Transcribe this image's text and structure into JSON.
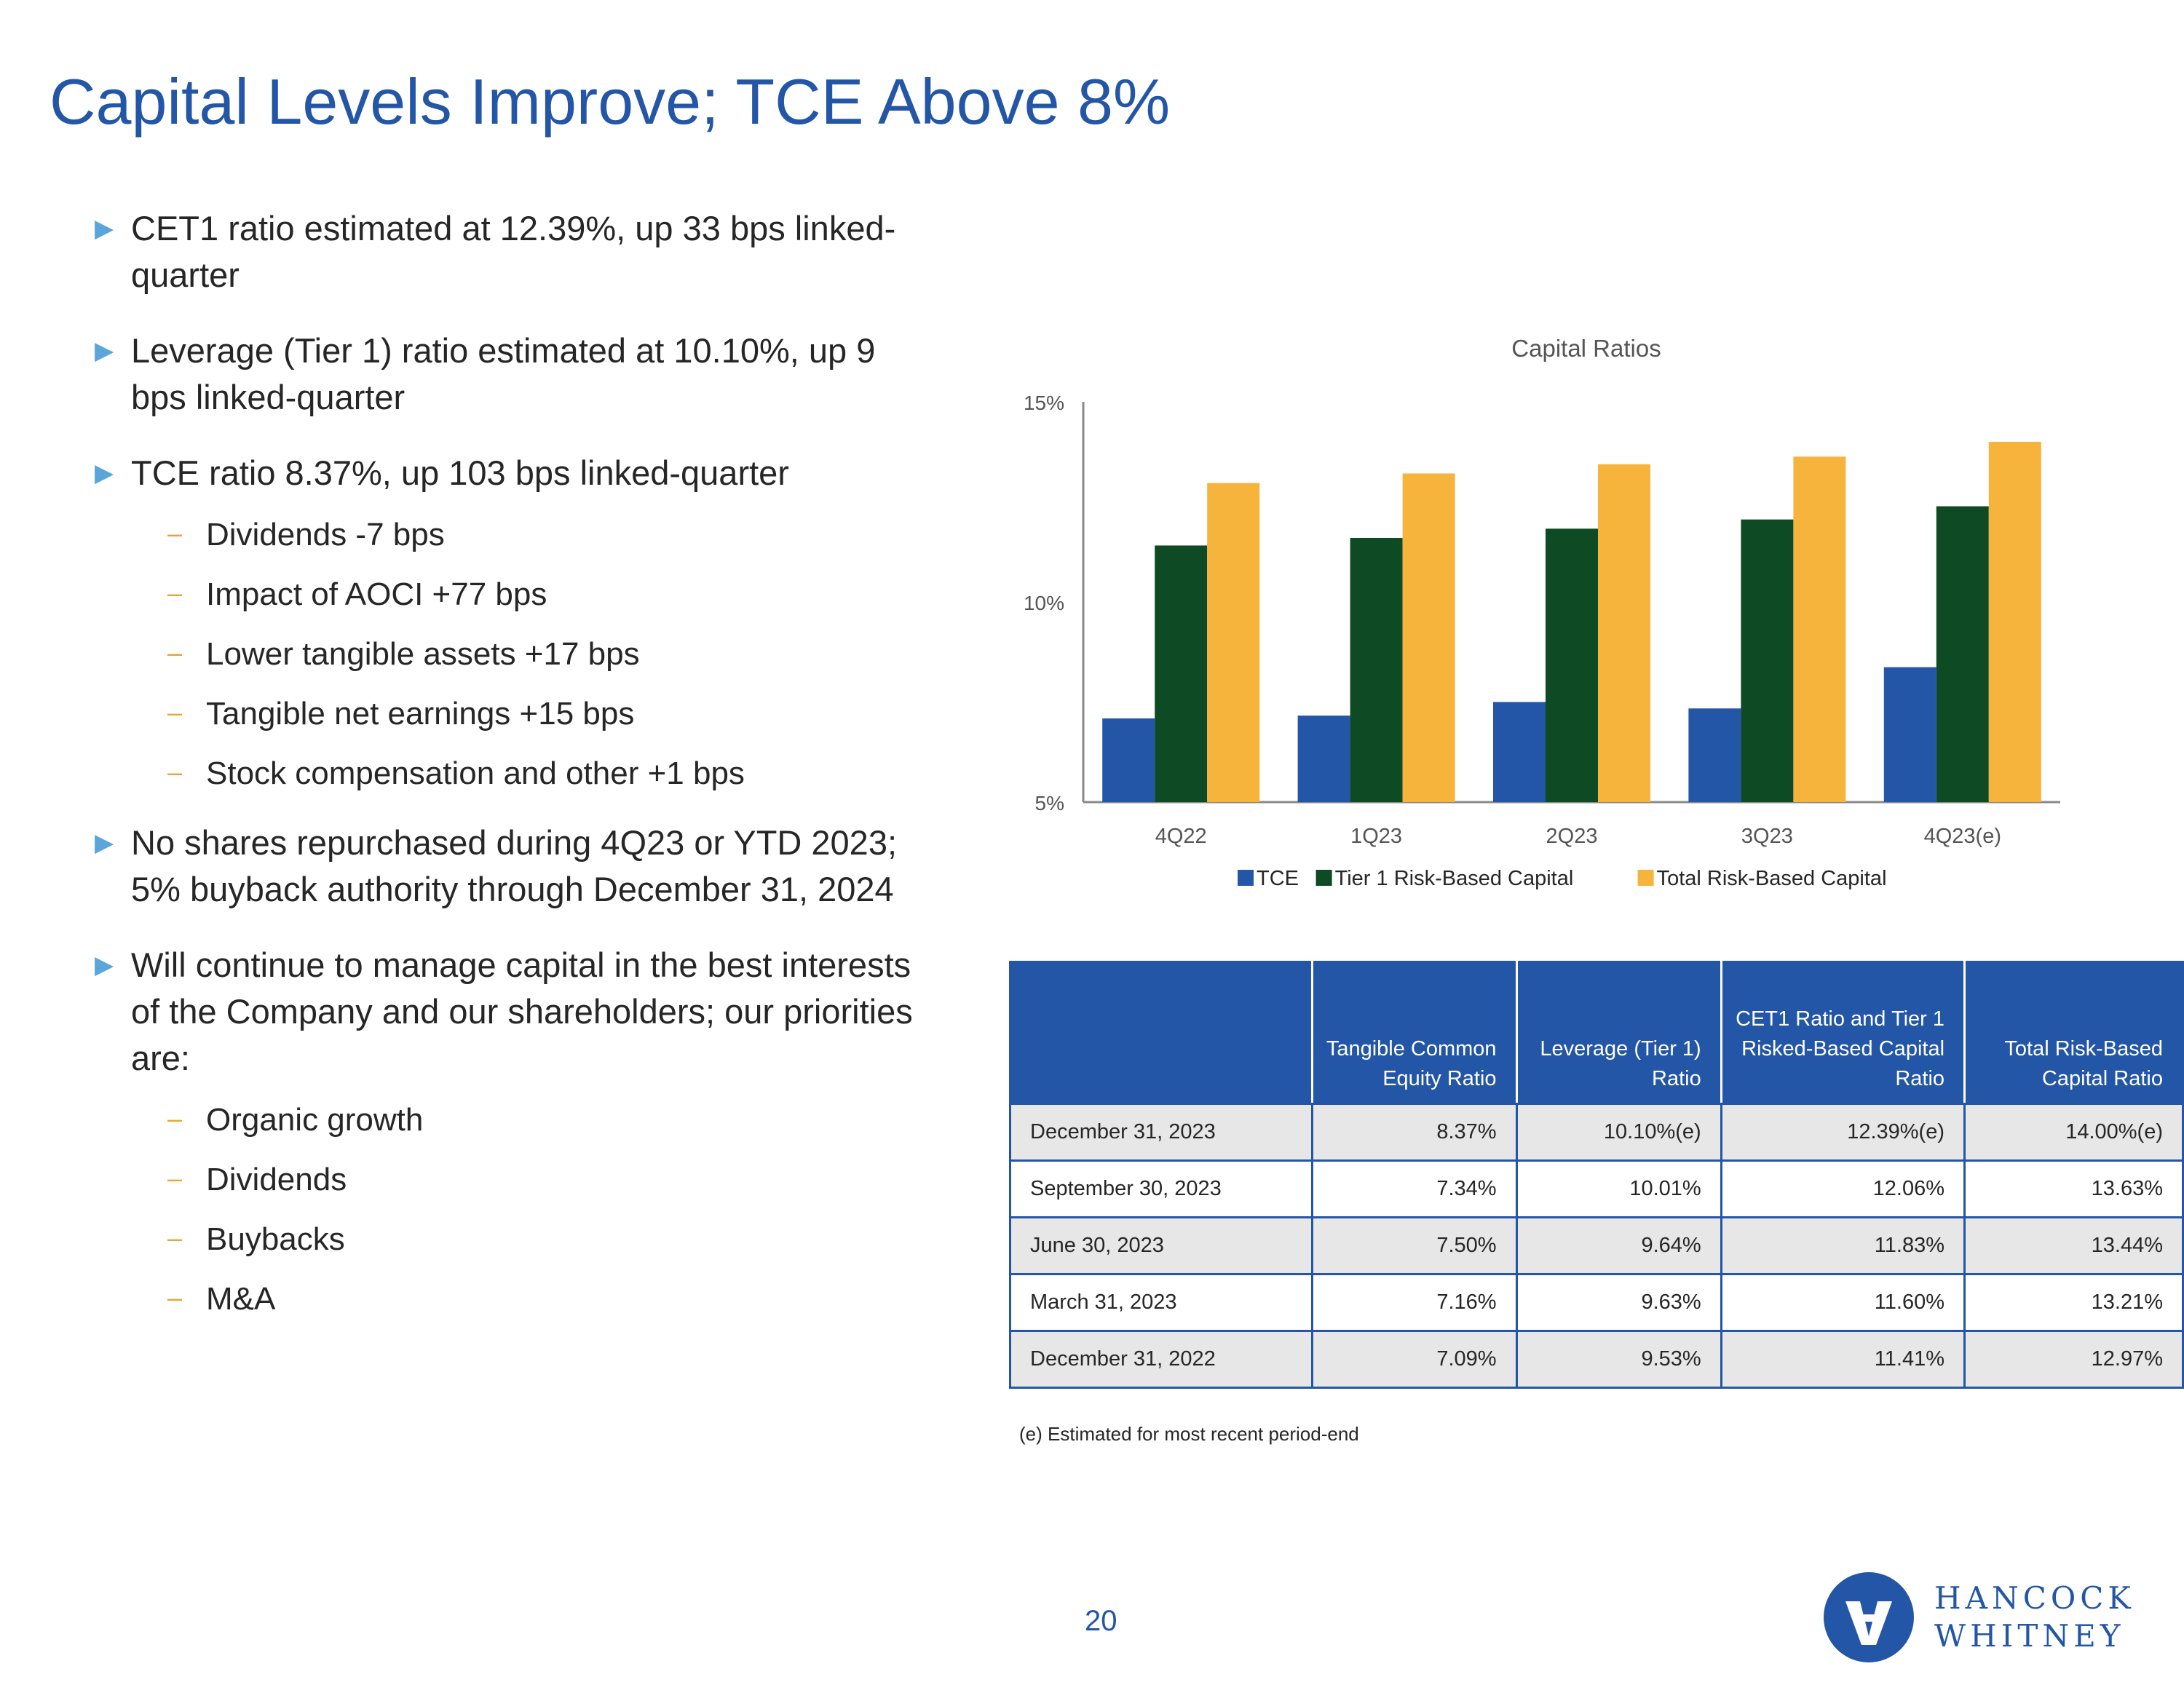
{
  "title": "Capital Levels Improve; TCE Above 8%",
  "bullets": [
    {
      "text": "CET1 ratio estimated at 12.39%, up 33 bps linked-quarter",
      "subs": []
    },
    {
      "text": "Leverage (Tier 1) ratio estimated at 10.10%, up 9 bps linked-quarter",
      "subs": []
    },
    {
      "text": "TCE ratio 8.37%, up 103 bps linked-quarter",
      "subs": [
        "Dividends  -7 bps",
        "Impact of AOCI +77 bps",
        "Lower tangible assets +17 bps",
        "Tangible net earnings +15 bps",
        "Stock compensation and other  +1 bps"
      ]
    },
    {
      "text": "No shares repurchased during 4Q23 or YTD 2023; 5% buyback authority through December 31, 2024",
      "subs": []
    },
    {
      "text": "Will continue to manage capital in the best interests of the Company and our shareholders; our priorities are:",
      "subs": [
        "Organic growth",
        "Dividends",
        "Buybacks",
        "M&A"
      ]
    }
  ],
  "chart_data": {
    "type": "bar",
    "title": "Capital Ratios",
    "categories": [
      "4Q22",
      "1Q23",
      "2Q23",
      "3Q23",
      "4Q23(e)"
    ],
    "series": [
      {
        "name": "TCE",
        "color": "#2356A6",
        "values": [
          7.09,
          7.16,
          7.5,
          7.34,
          8.37
        ]
      },
      {
        "name": "Tier 1 Risk-Based Capital",
        "color": "#0E4A24",
        "values": [
          11.41,
          11.6,
          11.83,
          12.06,
          12.39
        ]
      },
      {
        "name": "Total Risk-Based Capital",
        "color": "#F7B43C",
        "values": [
          12.97,
          13.21,
          13.44,
          13.63,
          14.0
        ]
      }
    ],
    "yticks": [
      5,
      10,
      15
    ],
    "ytick_labels": [
      "5%",
      "10%",
      "15%"
    ],
    "ylim": [
      5,
      15
    ],
    "legend": "bottom"
  },
  "table": {
    "headers": [
      "",
      "Tangible Common Equity Ratio",
      "Leverage (Tier 1) Ratio",
      "CET1 Ratio and Tier 1 Risked-Based Capital Ratio",
      "Total Risk-Based Capital Ratio"
    ],
    "rows": [
      [
        "December 31, 2023",
        "8.37%",
        "10.10%(e)",
        "12.39%(e)",
        "14.00%(e)"
      ],
      [
        "September 30, 2023",
        "7.34%",
        "10.01%",
        "12.06%",
        "13.63%"
      ],
      [
        "June 30, 2023",
        "7.50%",
        "9.64%",
        "11.83%",
        "13.44%"
      ],
      [
        "March 31, 2023",
        "7.16%",
        "9.63%",
        "11.60%",
        "13.21%"
      ],
      [
        "December 31, 2022",
        "7.09%",
        "9.53%",
        "11.41%",
        "12.97%"
      ]
    ]
  },
  "footnote": "(e) Estimated for most recent period-end",
  "page_number": "20",
  "logo": {
    "line1": "HANCOCK",
    "line2": "WHITNEY"
  }
}
